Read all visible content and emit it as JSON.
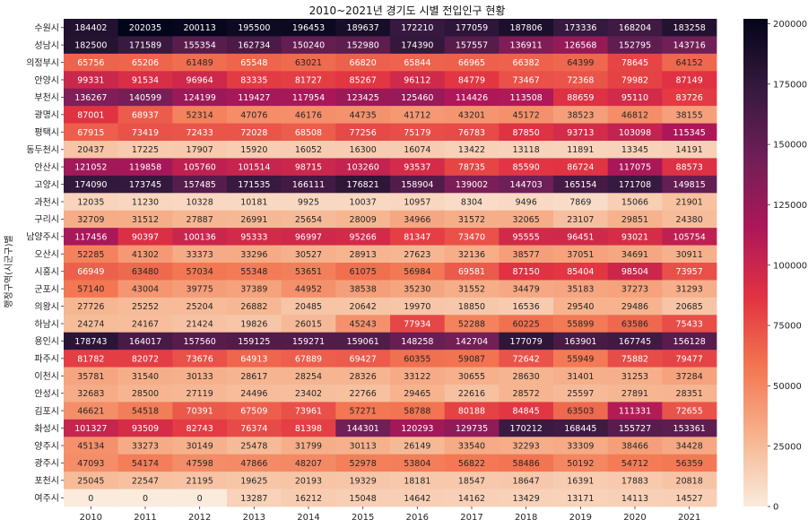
{
  "chart_data": {
    "type": "heatmap",
    "title": "2010~2021년 경기도 시별 전입인구 현황",
    "ylabel": "행정구역(시군구)별",
    "xlabel": "",
    "x": [
      "2010",
      "2011",
      "2012",
      "2013",
      "2014",
      "2015",
      "2016",
      "2017",
      "2018",
      "2019",
      "2020",
      "2021"
    ],
    "rows": [
      "수원시",
      "성남시",
      "의정부시",
      "안양시",
      "부천시",
      "광명시",
      "평택시",
      "동두천시",
      "안산시",
      "고양시",
      "과천시",
      "구리시",
      "남양주시",
      "오산시",
      "시흥시",
      "군포시",
      "의왕시",
      "하남시",
      "용인시",
      "파주시",
      "이천시",
      "안성시",
      "김포시",
      "화성시",
      "양주시",
      "광주시",
      "포천시",
      "여주시"
    ],
    "values": [
      [
        184402,
        202035,
        200113,
        195500,
        196453,
        189637,
        172210,
        177059,
        187806,
        173336,
        168204,
        183258
      ],
      [
        182500,
        171589,
        155354,
        162734,
        150240,
        152980,
        174390,
        157557,
        136911,
        126568,
        152795,
        143716
      ],
      [
        65756,
        65206,
        61489,
        65548,
        63021,
        66820,
        65844,
        66965,
        66382,
        64399,
        78645,
        64152
      ],
      [
        99331,
        91534,
        96964,
        83335,
        81727,
        85267,
        96112,
        84779,
        73467,
        72368,
        79982,
        87149
      ],
      [
        136267,
        140599,
        124199,
        119427,
        117954,
        123425,
        125460,
        114426,
        113508,
        88659,
        95110,
        83726
      ],
      [
        87001,
        68937,
        52314,
        47076,
        46176,
        44735,
        41712,
        43201,
        45172,
        38523,
        46812,
        38155
      ],
      [
        67915,
        73419,
        72433,
        72028,
        68508,
        77256,
        75179,
        76783,
        87850,
        93713,
        103098,
        115345
      ],
      [
        20437,
        17225,
        17907,
        15920,
        16052,
        16300,
        16074,
        13422,
        13118,
        11891,
        13345,
        14191
      ],
      [
        121052,
        119858,
        105760,
        101514,
        98715,
        103260,
        93537,
        78735,
        85590,
        86724,
        117075,
        88573
      ],
      [
        174090,
        173745,
        157485,
        171535,
        166111,
        176821,
        158904,
        139002,
        144703,
        165154,
        171708,
        149815
      ],
      [
        12035,
        11230,
        10328,
        10181,
        9925,
        10037,
        10957,
        8304,
        9496,
        7869,
        15066,
        21901
      ],
      [
        32709,
        31512,
        27887,
        26991,
        25654,
        28009,
        34966,
        31572,
        32065,
        23107,
        29851,
        24380
      ],
      [
        117456,
        90397,
        100136,
        95333,
        96997,
        95266,
        81347,
        73470,
        95555,
        96451,
        93021,
        105754
      ],
      [
        52285,
        41302,
        33373,
        33296,
        30527,
        28913,
        27623,
        32136,
        38577,
        37051,
        34691,
        30911
      ],
      [
        66949,
        63480,
        57034,
        55348,
        53651,
        61075,
        56984,
        69581,
        87150,
        85404,
        98504,
        73957
      ],
      [
        57140,
        43004,
        39775,
        37389,
        44952,
        38538,
        35230,
        31552,
        34479,
        35183,
        37273,
        31293
      ],
      [
        27726,
        25252,
        25204,
        26882,
        20485,
        20642,
        19970,
        18850,
        16536,
        29540,
        29486,
        20685
      ],
      [
        24274,
        24167,
        21424,
        19826,
        26015,
        45243,
        77934,
        52288,
        60225,
        55899,
        63586,
        75433
      ],
      [
        178743,
        164017,
        157560,
        159125,
        159271,
        159061,
        148258,
        142704,
        177079,
        163901,
        167745,
        156128
      ],
      [
        81782,
        82072,
        73676,
        64913,
        67889,
        69427,
        60355,
        59087,
        72642,
        55949,
        75882,
        79477
      ],
      [
        35781,
        31540,
        30133,
        28617,
        28254,
        28326,
        33122,
        30655,
        28630,
        31401,
        31253,
        37284
      ],
      [
        32683,
        28500,
        27119,
        24496,
        23402,
        22766,
        29465,
        22616,
        28572,
        25597,
        27891,
        28351
      ],
      [
        46621,
        54518,
        70391,
        67509,
        73961,
        57271,
        58788,
        80188,
        84845,
        63503,
        111331,
        72655
      ],
      [
        101327,
        93509,
        82743,
        76374,
        81398,
        144301,
        120293,
        129735,
        170212,
        168445,
        155727,
        153361
      ],
      [
        45134,
        33273,
        30149,
        25478,
        31799,
        30113,
        26149,
        33540,
        32293,
        33309,
        38466,
        34428
      ],
      [
        47093,
        54174,
        47598,
        47866,
        48207,
        52978,
        53804,
        56822,
        58486,
        50192,
        54712,
        56359
      ],
      [
        25045,
        22547,
        21195,
        19625,
        20193,
        19329,
        18181,
        18547,
        18647,
        16391,
        17883,
        20818
      ],
      [
        0,
        0,
        0,
        13287,
        16212,
        15048,
        14642,
        14162,
        13429,
        13171,
        14113,
        14527
      ]
    ],
    "colorbar": {
      "min": 0,
      "max": 202035,
      "ticks": [
        0,
        25000,
        50000,
        75000,
        100000,
        125000,
        150000,
        175000,
        200000
      ],
      "tick_labels": [
        "0",
        "25000",
        "50000",
        "75000",
        "100000",
        "125000",
        "150000",
        "175000",
        "200000"
      ]
    },
    "colormap": "rocket_r",
    "colors": [
      "#faebdd",
      "#f6b48f",
      "#f37651",
      "#e13342",
      "#ad1759",
      "#701f57",
      "#35193e",
      "#03051a"
    ]
  }
}
